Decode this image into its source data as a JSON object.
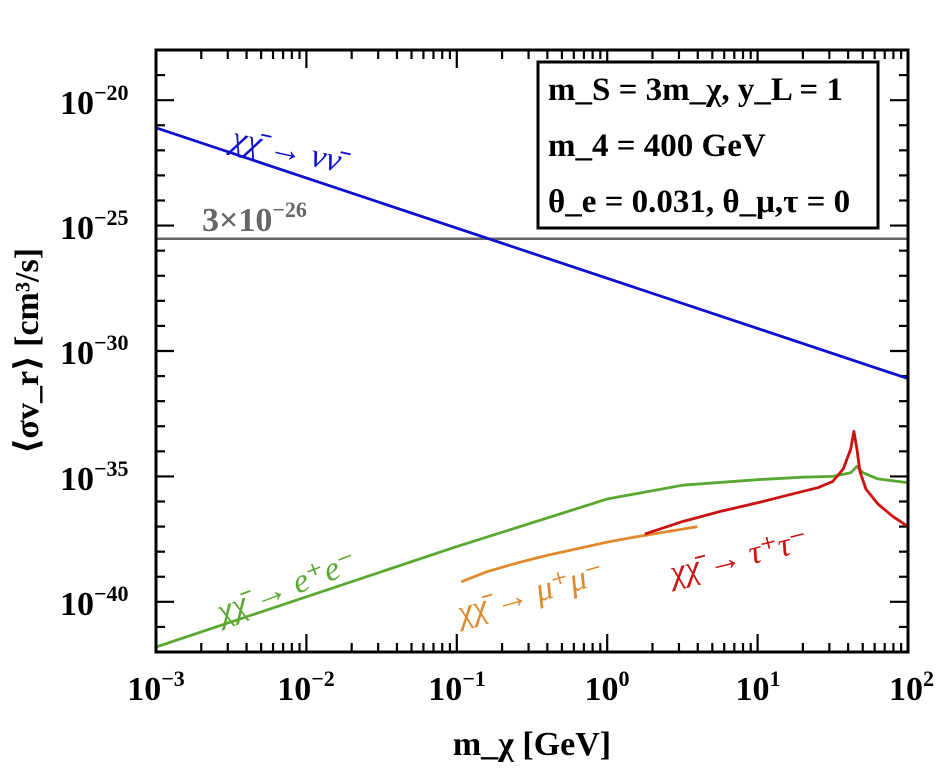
{
  "chart_data": {
    "type": "line",
    "xscale": "log",
    "yscale": "log",
    "xlim": [
      0.001,
      100
    ],
    "ylim": [
      1e-42,
      1e-18
    ],
    "xlabel": "m_χ [GeV]",
    "ylabel": "⟨σv_r⟩ [cm³/s]",
    "x_ticks": [
      {
        "base": "10",
        "exp": "−3",
        "value": -3
      },
      {
        "base": "10",
        "exp": "−2",
        "value": -2
      },
      {
        "base": "10",
        "exp": "−1",
        "value": -1
      },
      {
        "base": "10",
        "exp": "0",
        "value": 0
      },
      {
        "base": "10",
        "exp": "1",
        "value": 1
      },
      {
        "base": "10",
        "exp": "2",
        "value": 2
      }
    ],
    "y_ticks": [
      {
        "base": "10",
        "exp": "−20",
        "value": -20
      },
      {
        "base": "10",
        "exp": "−25",
        "value": -25
      },
      {
        "base": "10",
        "exp": "−30",
        "value": -30
      },
      {
        "base": "10",
        "exp": "−35",
        "value": -35
      },
      {
        "base": "10",
        "exp": "−40",
        "value": -40
      }
    ],
    "legend": {
      "placement": "top-right",
      "lines": [
        {
          "id": "line1",
          "text": "m_S = 3m_χ, y_L = 1"
        },
        {
          "id": "line2",
          "text": "m_4 = 400 GeV"
        },
        {
          "id": "line3",
          "text": "θ_e = 0.031, θ_μ,τ = 0"
        }
      ]
    },
    "reference_line": {
      "label": "3×10−26",
      "label_base": "3×10",
      "label_exp": "−26",
      "value": 3e-26,
      "color": "#666666"
    },
    "series": [
      {
        "name": "χχ̄ → νν̄",
        "color": "#1111cc",
        "label_text": "χχ̄ → νν̄",
        "x_log": [
          -3,
          2
        ],
        "y_log": [
          -21.1,
          -31.1
        ]
      },
      {
        "name": "χχ̄ → e⁺e⁻",
        "color": "#5aa832",
        "label_text": "χχ̄ → e⁺e⁻",
        "x_log": [
          -3,
          -2,
          -1,
          0,
          0.5,
          1,
          1.3,
          1.5,
          1.62,
          1.66,
          1.7,
          1.8,
          2
        ],
        "y_log": [
          -41.8,
          -39.8,
          -37.8,
          -35.9,
          -35.35,
          -35.13,
          -35.03,
          -35.0,
          -34.85,
          -34.6,
          -34.85,
          -35.1,
          -35.25
        ]
      },
      {
        "name": "χχ̄ → μ⁺μ⁻",
        "color": "#e08a2c",
        "label_text": "χχ̄ → μ⁺μ⁻",
        "x_log": [
          -0.97,
          -0.8,
          -0.6,
          -0.4,
          -0.2,
          0,
          0.2,
          0.4,
          0.6
        ],
        "y_log": [
          -39.2,
          -38.8,
          -38.45,
          -38.15,
          -37.88,
          -37.62,
          -37.4,
          -37.2,
          -37.0
        ]
      },
      {
        "name": "χχ̄ → τ⁺τ⁻",
        "color": "#cc1111",
        "label_text": "χχ̄ → τ⁺τ⁻",
        "x_log": [
          0.25,
          0.5,
          0.75,
          1.0,
          1.2,
          1.4,
          1.5,
          1.57,
          1.62,
          1.64,
          1.66,
          1.68,
          1.72,
          1.8,
          1.9,
          2
        ],
        "y_log": [
          -37.3,
          -36.8,
          -36.4,
          -36.05,
          -35.75,
          -35.45,
          -35.2,
          -34.7,
          -33.9,
          -33.2,
          -33.9,
          -34.8,
          -35.5,
          -36.1,
          -36.6,
          -37.0
        ]
      }
    ]
  }
}
